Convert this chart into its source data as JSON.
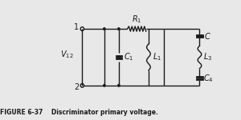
{
  "fig_label": "FIGURE 6-37",
  "fig_caption": "Discriminator primary voltage.",
  "background_color": "#e8e8e8",
  "line_color": "#1a1a1a",
  "lw": 1.0
}
